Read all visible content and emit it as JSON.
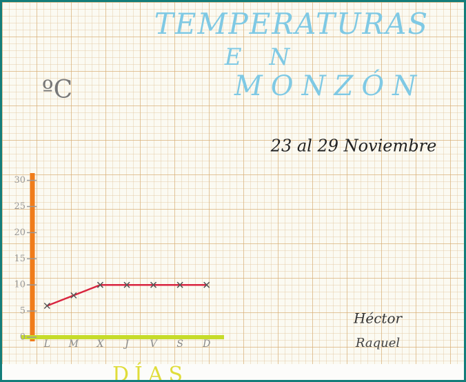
{
  "chart_data": {
    "type": "line",
    "title": [
      "TEMPERATURAS",
      "EN",
      "MONZÓN"
    ],
    "subtitle": "23 al 29 Noviembre",
    "y_label": "ºC",
    "x_label": "DÍAS",
    "authors": [
      "Héctor",
      "Raquel"
    ],
    "categories": [
      "L",
      "M",
      "X",
      "J",
      "V",
      "S",
      "D"
    ],
    "values": [
      6,
      8,
      10,
      10,
      10,
      10,
      10
    ],
    "color": "#d8243f",
    "ylim": [
      0,
      31
    ],
    "yticks": [
      0,
      5,
      10,
      15,
      20,
      25,
      30
    ]
  }
}
